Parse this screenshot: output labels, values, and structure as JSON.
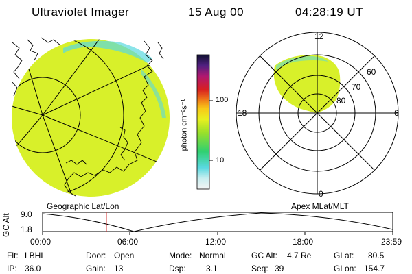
{
  "header": {
    "instrument": "Ultraviolet Imager",
    "date": "15 Aug 00",
    "time": "04:28:19 UT"
  },
  "colorbar": {
    "unit_label": "photon cm⁻²s⁻¹",
    "tick_labels": [
      "100",
      "10"
    ]
  },
  "polar_plot": {
    "mlt_labels": [
      "12",
      "18",
      "6",
      "0"
    ],
    "lat_labels": [
      "60",
      "70",
      "80"
    ]
  },
  "projection": {
    "left_caption": "Geographic Lat/Lon",
    "right_caption": "Apex MLat/MLT"
  },
  "altitude_plot": {
    "ylabel": "GC Alt",
    "y_ticks": [
      "9.0",
      "1.8"
    ],
    "x_ticks": [
      "00:00",
      "06:00",
      "12:00",
      "18:00",
      "23:59"
    ]
  },
  "status": {
    "filter_label": "Flt:",
    "filter_value": "LBHL",
    "ip_label": "IP:",
    "ip_value": "36.0",
    "door_label": "Door:",
    "door_value": "Open",
    "gain_label": "Gain:",
    "gain_value": "13",
    "mode_label": "Mode:",
    "mode_value": "Normal",
    "dsp_label": "Dsp:",
    "dsp_value": "3.1",
    "gcalt_label": "GC Alt:",
    "gcalt_value": "4.7 Re",
    "seq_label": "Seq:",
    "seq_value": "39",
    "glat_label": "GLat:",
    "glat_value": "80.5",
    "glon_label": "GLon:",
    "glon_value": "154.7"
  },
  "colors": {
    "fill": "#d8f02a",
    "cyan": "#5ad8e0",
    "cursor": "#d03030"
  }
}
